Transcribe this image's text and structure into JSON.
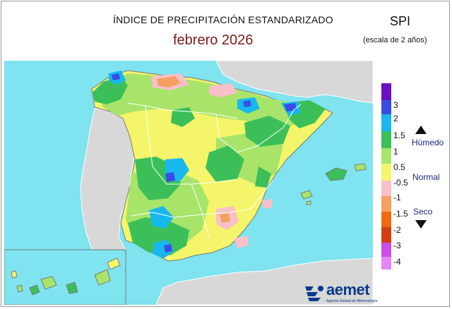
{
  "header": {
    "title": "ÍNDICE DE PRECIPITACIÓN ESTANDARIZADO",
    "period": "febrero  2026",
    "index_name": "SPI",
    "scale_note": "(escala de 2 años)"
  },
  "legend": {
    "ticks": [
      "3",
      "2",
      "1.5",
      "1",
      "0.5",
      "-0.5",
      "-1",
      "-1.5",
      "-2",
      "-3",
      "-4"
    ],
    "colors": [
      "#6a0fc2",
      "#3a4ce8",
      "#18b8ee",
      "#3cbf58",
      "#a8e46a",
      "#f4f56a",
      "#f8c0c8",
      "#f5a060",
      "#f06a10",
      "#d43e10",
      "#c84ee6",
      "#e486f4"
    ],
    "wet_label": "Húmedo",
    "normal_label": "Normal",
    "dry_label": "Seco"
  },
  "colors": {
    "sea": "#7fe3f0",
    "land_other": "#d8d8d8",
    "border": "#ffffff",
    "title_accent": "#7b1a1a",
    "logo": "#0a3b8c"
  },
  "logo": {
    "name": "aemet",
    "subtitle": "Agencia Estatal de Meteorología"
  }
}
